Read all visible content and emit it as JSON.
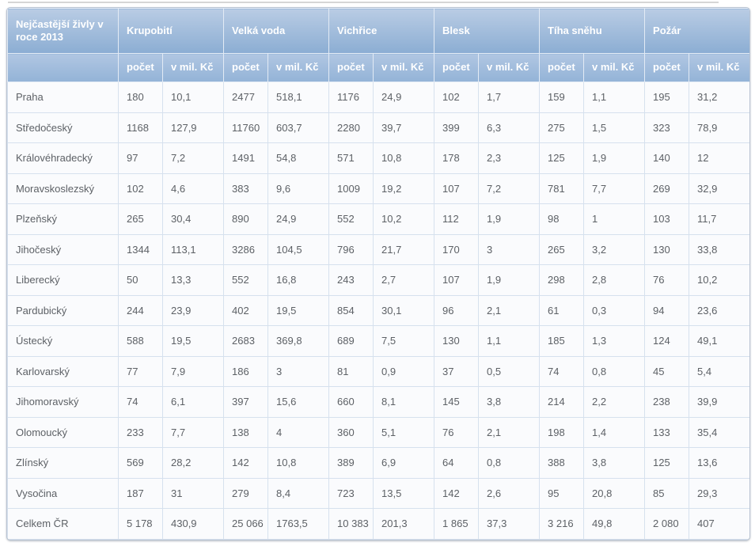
{
  "colors": {
    "header_gradient_top": "#b9cce4",
    "header_gradient_bottom": "#8badd3",
    "subheader_gradient_top": "#b0c6e2",
    "subheader_gradient_bottom": "#93b3d7",
    "header_text": "#ffffff",
    "cell_background": "#fafbfd",
    "cell_border": "#d6e1ee",
    "cell_text": "#5d6166"
  },
  "chart_data": {
    "type": "table",
    "title": "Nejčastější živly v roce 2013",
    "column_groups": [
      {
        "label": "Krupobití",
        "subcolumns": [
          "počet",
          "v mil. Kč"
        ]
      },
      {
        "label": "Velká voda",
        "subcolumns": [
          "počet",
          "v mil. Kč"
        ]
      },
      {
        "label": "Vichřice",
        "subcolumns": [
          "počet",
          "v mil. Kč"
        ]
      },
      {
        "label": "Blesk",
        "subcolumns": [
          "počet",
          "v mil. Kč"
        ]
      },
      {
        "label": "Tíha sněhu",
        "subcolumns": [
          "počet",
          "v mil. Kč"
        ]
      },
      {
        "label": "Požár",
        "subcolumns": [
          "počet",
          "v mil. Kč"
        ]
      }
    ],
    "rows": [
      {
        "region": "Praha",
        "values": [
          "180",
          "10,1",
          "2477",
          "518,1",
          "1176",
          "24,9",
          "102",
          "1,7",
          "159",
          "1,1",
          "195",
          "31,2"
        ]
      },
      {
        "region": "Středočeský",
        "values": [
          "1168",
          "127,9",
          "11760",
          "603,7",
          "2280",
          "39,7",
          "399",
          "6,3",
          "275",
          "1,5",
          "323",
          "78,9"
        ]
      },
      {
        "region": "Královéhradecký",
        "values": [
          "97",
          "7,2",
          "1491",
          "54,8",
          "571",
          "10,8",
          "178",
          "2,3",
          "125",
          "1,9",
          "140",
          "12"
        ]
      },
      {
        "region": "Moravskoslezský",
        "values": [
          "102",
          "4,6",
          "383",
          "9,6",
          "1009",
          "19,2",
          "107",
          "7,2",
          "781",
          "7,7",
          "269",
          "32,9"
        ]
      },
      {
        "region": "Plzeňský",
        "values": [
          "265",
          "30,4",
          "890",
          "24,9",
          "552",
          "10,2",
          "112",
          "1,9",
          "98",
          "1",
          "103",
          "11,7"
        ]
      },
      {
        "region": "Jihočeský",
        "values": [
          "1344",
          "113,1",
          "3286",
          "104,5",
          "796",
          "21,7",
          "170",
          "3",
          "265",
          "3,2",
          "130",
          "33,8"
        ]
      },
      {
        "region": "Liberecký",
        "values": [
          "50",
          "13,3",
          "552",
          "16,8",
          "243",
          "2,7",
          "107",
          "1,9",
          "298",
          "2,8",
          "76",
          "10,2"
        ]
      },
      {
        "region": "Pardubický",
        "values": [
          "244",
          "23,9",
          "402",
          "19,5",
          "854",
          "30,1",
          "96",
          "2,1",
          "61",
          "0,3",
          "94",
          "23,6"
        ]
      },
      {
        "region": "Ústecký",
        "values": [
          "588",
          "19,5",
          "2683",
          "369,8",
          "689",
          "7,5",
          "130",
          "1,1",
          "185",
          "1,3",
          "124",
          "49,1"
        ]
      },
      {
        "region": "Karlovarský",
        "values": [
          "77",
          "7,9",
          "186",
          "3",
          "81",
          "0,9",
          "37",
          "0,5",
          "74",
          "0,8",
          "45",
          "5,4"
        ]
      },
      {
        "region": "Jihomoravský",
        "values": [
          "74",
          "6,1",
          "397",
          "15,6",
          "660",
          "8,1",
          "145",
          "3,8",
          "214",
          "2,2",
          "238",
          "39,9"
        ]
      },
      {
        "region": "Olomoucký",
        "values": [
          "233",
          "7,7",
          "138",
          "4",
          "360",
          "5,1",
          "76",
          "2,1",
          "198",
          "1,4",
          "133",
          "35,4"
        ]
      },
      {
        "region": "Zlínský",
        "values": [
          "569",
          "28,2",
          "142",
          "10,8",
          "389",
          "6,9",
          "64",
          "0,8",
          "388",
          "3,8",
          "125",
          "13,6"
        ]
      },
      {
        "region": "Vysočina",
        "values": [
          "187",
          "31",
          "279",
          "8,4",
          "723",
          "13,5",
          "142",
          "2,6",
          "95",
          "20,8",
          "85",
          "29,3"
        ]
      },
      {
        "region": "Celkem ČR",
        "values": [
          "5 178",
          "430,9",
          "25 066",
          "1763,5",
          "10 383",
          "201,3",
          "1 865",
          "37,3",
          "3 216",
          "49,8",
          "2 080",
          "407"
        ]
      }
    ]
  }
}
